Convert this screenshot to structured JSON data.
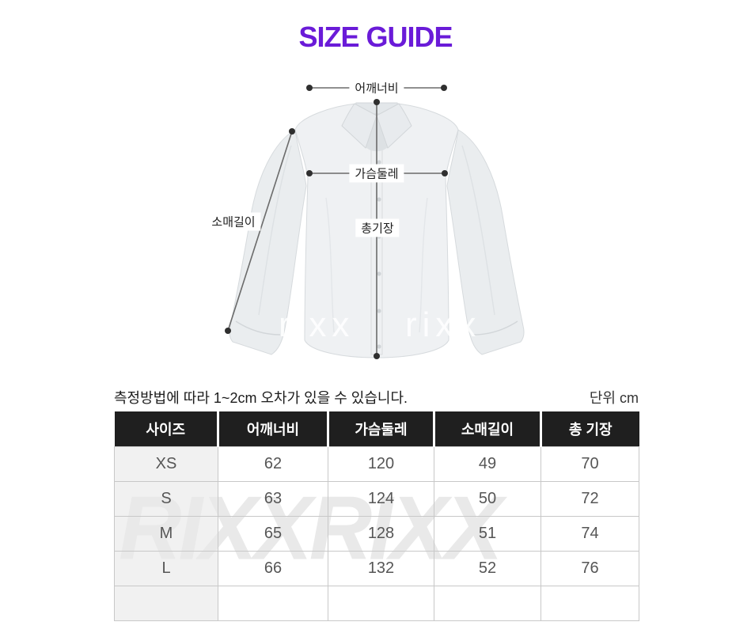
{
  "title": "SIZE GUIDE",
  "accent_color": "#6a1bd8",
  "diagram": {
    "labels": {
      "shoulder": "어깨너비",
      "chest": "가슴둘레",
      "sleeve": "소매길이",
      "length": "총기장"
    },
    "watermark": "rixx"
  },
  "note": "측정방법에 따라 1~2cm 오차가 있을 수 있습니다.",
  "unit": "단위 cm",
  "table": {
    "watermark": "RIXXRIXX",
    "headers": [
      "사이즈",
      "어깨너비",
      "가슴둘레",
      "소매길이",
      "총 기장"
    ],
    "rows": [
      {
        "size": "XS",
        "values": [
          "62",
          "120",
          "49",
          "70"
        ]
      },
      {
        "size": "S",
        "values": [
          "63",
          "124",
          "50",
          "72"
        ]
      },
      {
        "size": "M",
        "values": [
          "65",
          "128",
          "51",
          "74"
        ]
      },
      {
        "size": "L",
        "values": [
          "66",
          "132",
          "52",
          "76"
        ]
      },
      {
        "size": "",
        "values": [
          "",
          "",
          "",
          ""
        ]
      }
    ]
  }
}
